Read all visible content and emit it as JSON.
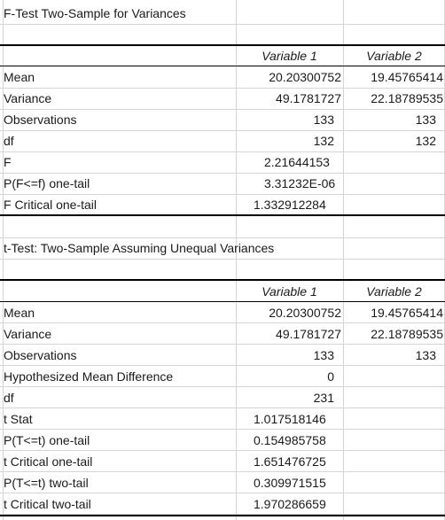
{
  "ftest": {
    "title": "F-Test Two-Sample for Variances",
    "col_headers": [
      "Variable 1",
      "Variable 2"
    ],
    "rows": [
      {
        "label": "Mean",
        "v1": "20.20300752",
        "v2": "19.45765414"
      },
      {
        "label": "Variance",
        "v1": "49.1781727",
        "v2": "22.18789535"
      },
      {
        "label": "Observations",
        "v1": "133",
        "v2": "133"
      },
      {
        "label": "df",
        "v1": "132",
        "v2": "132"
      },
      {
        "label": "F",
        "v1": "2.21644153",
        "v2": ""
      },
      {
        "label": "P(F<=f) one-tail",
        "v1": "3.31232E-06",
        "v2": ""
      },
      {
        "label": "F Critical one-tail",
        "v1": "1.332912284",
        "v2": ""
      }
    ]
  },
  "ttest": {
    "title": "t-Test: Two-Sample Assuming Unequal Variances",
    "col_headers": [
      "Variable 1",
      "Variable 2"
    ],
    "rows": [
      {
        "label": "Mean",
        "v1": "20.20300752",
        "v2": "19.45765414"
      },
      {
        "label": "Variance",
        "v1": "49.1781727",
        "v2": "22.18789535"
      },
      {
        "label": "Observations",
        "v1": "133",
        "v2": "133"
      },
      {
        "label": "Hypothesized Mean Difference",
        "v1": "0",
        "v2": ""
      },
      {
        "label": "df",
        "v1": "231",
        "v2": ""
      },
      {
        "label": "t Stat",
        "v1": "1.017518146",
        "v2": ""
      },
      {
        "label": "P(T<=t) one-tail",
        "v1": "0.154985758",
        "v2": ""
      },
      {
        "label": "t Critical one-tail",
        "v1": "1.651476725",
        "v2": ""
      },
      {
        "label": "P(T<=t) two-tail",
        "v1": "0.309971515",
        "v2": ""
      },
      {
        "label": "t Critical two-tail",
        "v1": "1.970286659",
        "v2": ""
      }
    ]
  }
}
